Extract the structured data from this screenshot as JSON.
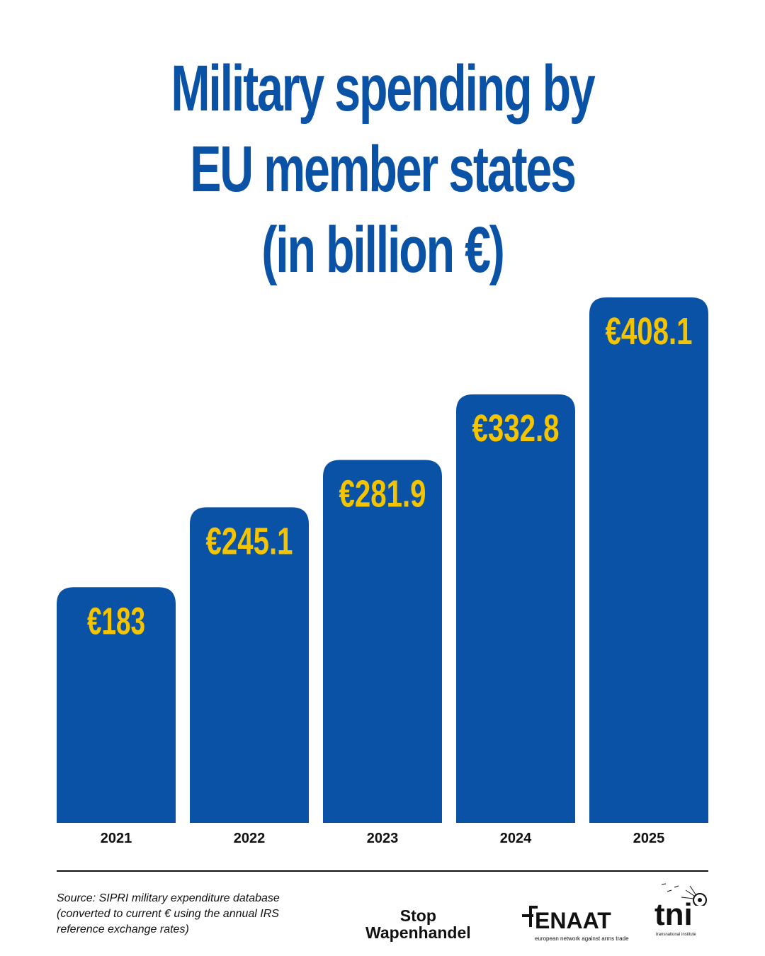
{
  "chart_data": {
    "type": "bar",
    "title_lines": [
      "Military spending by",
      "EU member states",
      "(in billion €)"
    ],
    "categories": [
      "2021",
      "2022",
      "2023",
      "2024",
      "2025"
    ],
    "values": [
      183,
      245.1,
      281.9,
      332.8,
      408.1
    ],
    "data_labels": [
      "€183",
      "€245.1",
      "€281.9",
      "€332.8",
      "€408.1"
    ],
    "ylim": [
      0,
      440
    ],
    "grid": false,
    "legend": "none",
    "bar_color": "#0a52a5",
    "label_color": "#f5c400"
  },
  "footer": {
    "source_lines": [
      "Source: SIPRI military expenditure database",
      "(converted to current € using the annual IRS",
      "reference exchange rates)"
    ],
    "logos": {
      "stop_wapenhandel": [
        "Stop",
        "Wapenhandel"
      ],
      "enaat": {
        "name": "ENAAT",
        "tagline": "european network against arms trade"
      },
      "tni": {
        "name": "tni",
        "tagline": "transnational institute"
      }
    }
  }
}
